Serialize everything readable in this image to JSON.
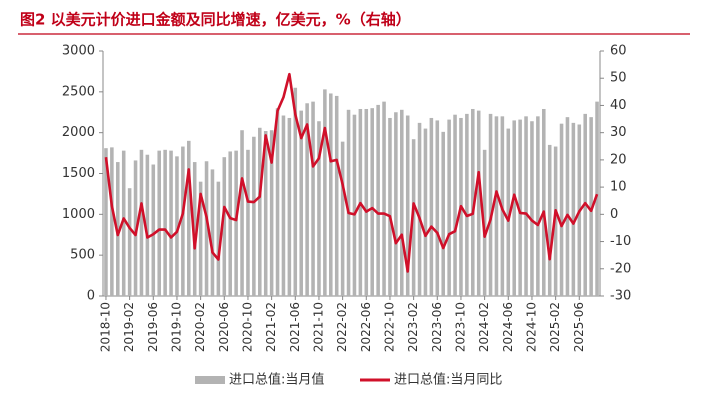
{
  "chart_data": {
    "type": "bar_line",
    "title": "图2  以美元计价进口金额及同比增速，亿美元，%（右轴）",
    "categories": [
      "2018-10",
      null,
      null,
      null,
      "2019-02",
      null,
      null,
      null,
      "2019-06",
      null,
      null,
      null,
      "2019-10",
      null,
      null,
      null,
      "2020-02",
      null,
      null,
      null,
      "2020-06",
      null,
      null,
      null,
      "2020-10",
      null,
      null,
      null,
      "2021-02",
      null,
      null,
      null,
      "2021-06",
      null,
      null,
      null,
      "2021-10",
      null,
      null,
      null,
      "2022-02",
      null,
      null,
      null,
      "2022-06",
      null,
      null,
      null,
      "2022-10",
      null,
      null,
      null,
      "2023-02",
      null,
      null,
      null,
      "2023-06",
      null,
      null,
      null,
      "2023-10",
      null,
      null,
      null,
      "2024-02",
      null,
      null,
      null,
      "2024-06",
      null,
      null,
      null,
      "2024-10",
      null,
      null,
      null,
      "2025-02",
      null,
      null,
      null,
      "2025-06",
      null,
      null,
      null
    ],
    "series": [
      {
        "name": "进口总值:当月值",
        "color": "#b3b3b3",
        "kind": "bar",
        "axis": "y",
        "values": [
          1810,
          1820,
          1640,
          1780,
          1320,
          1660,
          1790,
          1730,
          1610,
          1780,
          1790,
          1780,
          1710,
          1830,
          1900,
          1640,
          1400,
          1650,
          1550,
          1400,
          1700,
          1770,
          1780,
          2030,
          1790,
          1950,
          2060,
          2020,
          2030,
          2300,
          2210,
          2180,
          2550,
          2270,
          2360,
          2380,
          2140,
          2530,
          2480,
          2450,
          1890,
          2280,
          2220,
          2290,
          2290,
          2300,
          2340,
          2380,
          2180,
          2250,
          2280,
          2210,
          1920,
          2120,
          2050,
          2180,
          2150,
          2010,
          2160,
          2220,
          2180,
          2230,
          2290,
          2270,
          1790,
          2230,
          2200,
          2200,
          2050,
          2150,
          2160,
          2200,
          2140,
          2200,
          2290,
          1850,
          1830,
          2110,
          2190,
          2120,
          2100,
          2230,
          2190,
          2380
        ]
      },
      {
        "name": "进口总值:当月同比",
        "color": "#d0102a",
        "kind": "line",
        "axis": "y2",
        "values": [
          21,
          3,
          -7.6,
          -1.5,
          -5,
          -7.6,
          4,
          -8.5,
          -7.3,
          -5.6,
          -5.6,
          -8.5,
          -6.4,
          0.3,
          16.5,
          -12.5,
          7.5,
          -1,
          -14,
          -16.6,
          2.7,
          -1.4,
          -2.1,
          13.2,
          4.7,
          4.5,
          6.5,
          29,
          19,
          38,
          43,
          51.5,
          36.7,
          28,
          33,
          17.6,
          20.6,
          31.7,
          19.5,
          20,
          11,
          0.5,
          0,
          4.1,
          1,
          2.3,
          0.3,
          0.3,
          -0.7,
          -10.6,
          -7.5,
          -21,
          4,
          -1.4,
          -7.9,
          -4.5,
          -6.8,
          -12.4,
          -7.3,
          -6.2,
          3,
          -0.6,
          0.2,
          15.5,
          -8.2,
          -1.9,
          8.4,
          1.8,
          -2.3,
          7.2,
          0.5,
          0.3,
          -2.3,
          -3.9,
          1,
          -16.5,
          1.5,
          -4.3,
          -0.2,
          -3.4,
          1.1,
          4.1,
          1.3,
          7.4
        ]
      }
    ],
    "ylim": [
      0,
      3000
    ],
    "yticks": [
      0,
      500,
      1000,
      1500,
      2000,
      2500,
      3000
    ],
    "y2lim": [
      -30,
      60
    ],
    "y2ticks": [
      -30,
      -20,
      -10,
      0,
      10,
      20,
      30,
      40,
      50,
      60
    ],
    "legend": "bottom"
  }
}
